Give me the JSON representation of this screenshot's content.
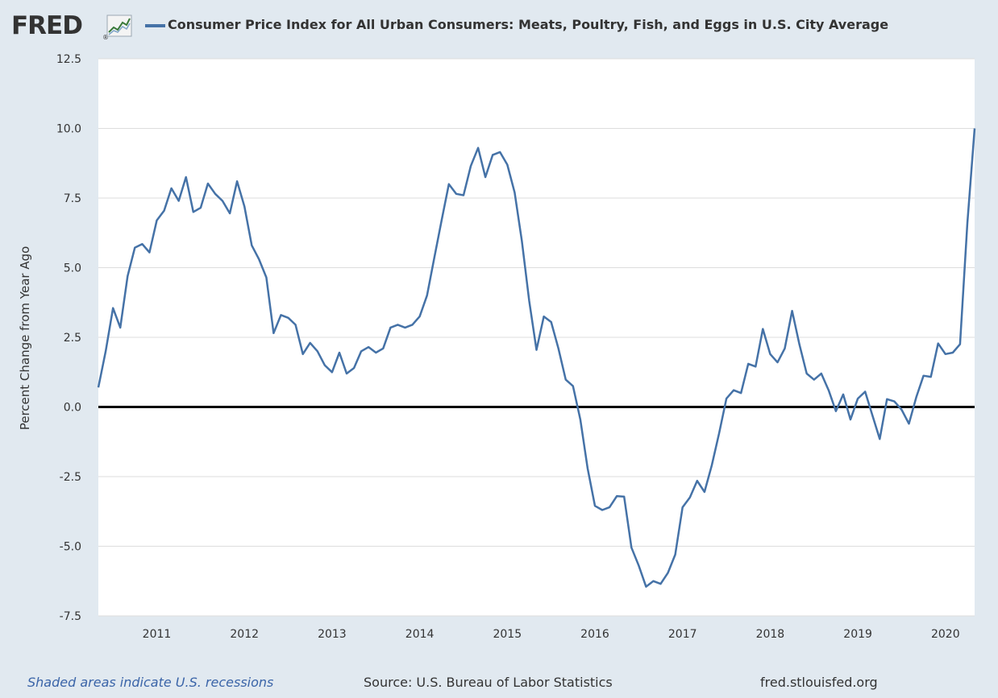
{
  "header": {
    "logo": "FRED",
    "logo_mark": "®",
    "series_title": "Consumer Price Index for All Urban Consumers: Meats, Poultry, Fish, and Eggs in U.S. City Average"
  },
  "colors": {
    "series": "#4572a7",
    "zero_line": "#000000",
    "background": "#e1e9f0",
    "plot_bg": "#ffffff",
    "grid": "#dddddd"
  },
  "chart_data": {
    "type": "line",
    "title": "Consumer Price Index for All Urban Consumers: Meats, Poultry, Fish, and Eggs in U.S. City Average",
    "xlabel": "",
    "ylabel": "Percent Change from Year Ago",
    "ylim": [
      -7.5,
      12.5
    ],
    "yticks": [
      "12.5",
      "10.0",
      "7.5",
      "5.0",
      "2.5",
      "0.0",
      "-2.5",
      "-5.0",
      "-7.5"
    ],
    "ytick_values": [
      12.5,
      10.0,
      7.5,
      5.0,
      2.5,
      0.0,
      -2.5,
      -5.0,
      -7.5
    ],
    "xlim": [
      2010.333,
      2020.333
    ],
    "xticks": [
      "2011",
      "2012",
      "2013",
      "2014",
      "2015",
      "2016",
      "2017",
      "2018",
      "2019",
      "2020"
    ],
    "xtick_values": [
      2011,
      2012,
      2013,
      2014,
      2015,
      2016,
      2017,
      2018,
      2019,
      2020
    ],
    "grid": true,
    "reference_line": 0,
    "series": [
      {
        "name": "Consumer Price Index for All Urban Consumers: Meats, Poultry, Fish, and Eggs in U.S. City Average",
        "start": "2010-05",
        "frequency": "monthly",
        "values": [
          0.7,
          2.0,
          3.55,
          2.85,
          4.7,
          5.72,
          5.85,
          5.55,
          6.7,
          7.05,
          7.85,
          7.4,
          8.25,
          7.0,
          7.15,
          8.02,
          7.65,
          7.4,
          6.95,
          8.1,
          7.2,
          5.8,
          5.3,
          4.65,
          2.65,
          3.3,
          3.2,
          2.95,
          1.9,
          2.3,
          2.0,
          1.5,
          1.25,
          1.95,
          1.2,
          1.4,
          2.0,
          2.15,
          1.95,
          2.1,
          2.85,
          2.95,
          2.85,
          2.95,
          3.25,
          4.0,
          5.35,
          6.7,
          8.0,
          7.65,
          7.6,
          8.65,
          9.3,
          8.25,
          9.05,
          9.15,
          8.7,
          7.7,
          5.95,
          3.8,
          2.05,
          3.25,
          3.05,
          2.1,
          0.98,
          0.75,
          -0.45,
          -2.2,
          -3.55,
          -3.7,
          -3.6,
          -3.2,
          -3.22,
          -5.05,
          -5.7,
          -6.45,
          -6.25,
          -6.35,
          -5.95,
          -5.3,
          -3.6,
          -3.25,
          -2.65,
          -3.05,
          -2.1,
          -0.95,
          0.3,
          0.6,
          0.5,
          1.55,
          1.45,
          2.8,
          1.9,
          1.6,
          2.1,
          3.45,
          2.25,
          1.2,
          0.98,
          1.2,
          0.6,
          -0.15,
          0.45,
          -0.45,
          0.3,
          0.55,
          -0.3,
          -1.15,
          0.28,
          0.2,
          -0.1,
          -0.6,
          0.35,
          1.12,
          1.08,
          2.28,
          1.9,
          1.95,
          2.25,
          6.6,
          10.0
        ]
      }
    ]
  },
  "footer": {
    "recessions_note": "Shaded areas indicate U.S. recessions",
    "source": "Source: U.S. Bureau of Labor Statistics",
    "site": "fred.stlouisfed.org"
  }
}
